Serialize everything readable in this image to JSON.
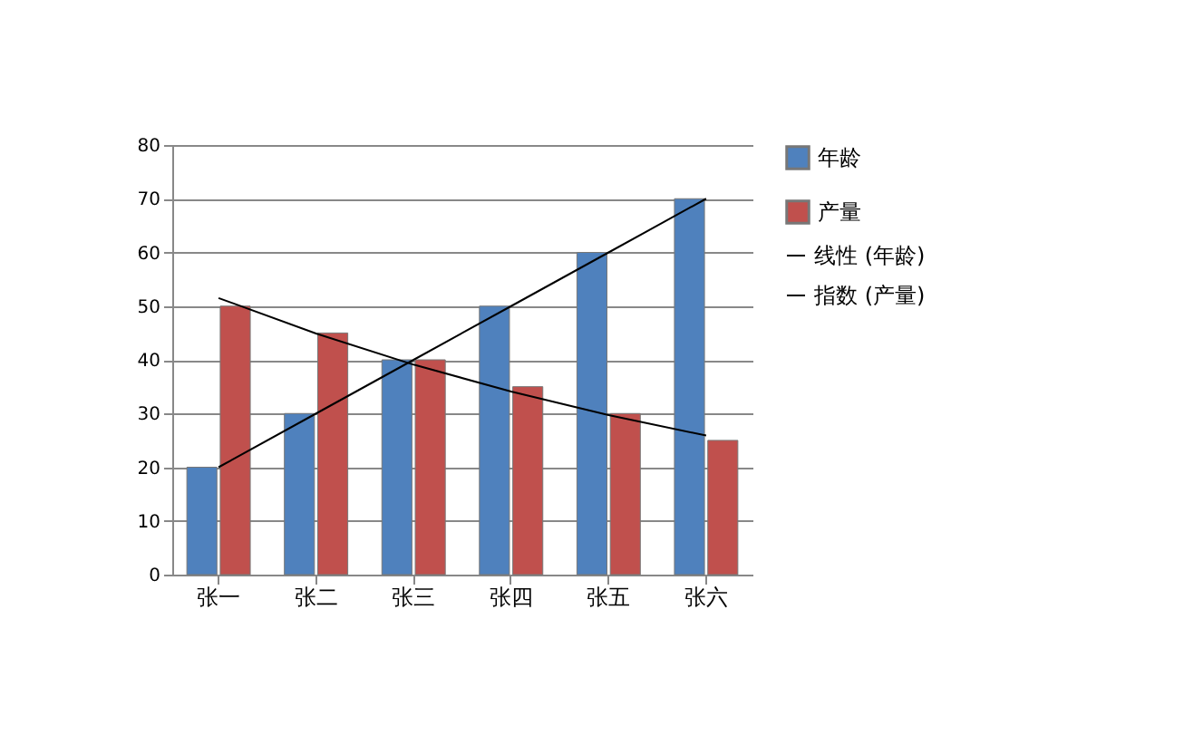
{
  "chart_data": {
    "type": "bar",
    "categories": [
      "张一",
      "张二",
      "张三",
      "张四",
      "张五",
      "张六"
    ],
    "series": [
      {
        "name": "年龄",
        "color": "#4f81bd",
        "values": [
          20,
          30,
          40,
          50,
          60,
          70
        ]
      },
      {
        "name": "产量",
        "color": "#c0504d",
        "values": [
          50,
          45,
          40,
          35,
          30,
          25
        ]
      },
      {
        "name": "线性 (年龄)",
        "type": "line",
        "color": "#000000",
        "values": [
          20,
          30,
          40,
          50,
          60,
          70
        ]
      },
      {
        "name": "指数 (产量)",
        "type": "line",
        "color": "#000000",
        "values": [
          51.5,
          44.9,
          39.1,
          34.1,
          29.7,
          25.9
        ]
      }
    ],
    "ylim": [
      0,
      80
    ],
    "yticks": [
      0,
      10,
      20,
      30,
      40,
      50,
      60,
      70,
      80
    ],
    "grid": "y",
    "legend": "right"
  }
}
